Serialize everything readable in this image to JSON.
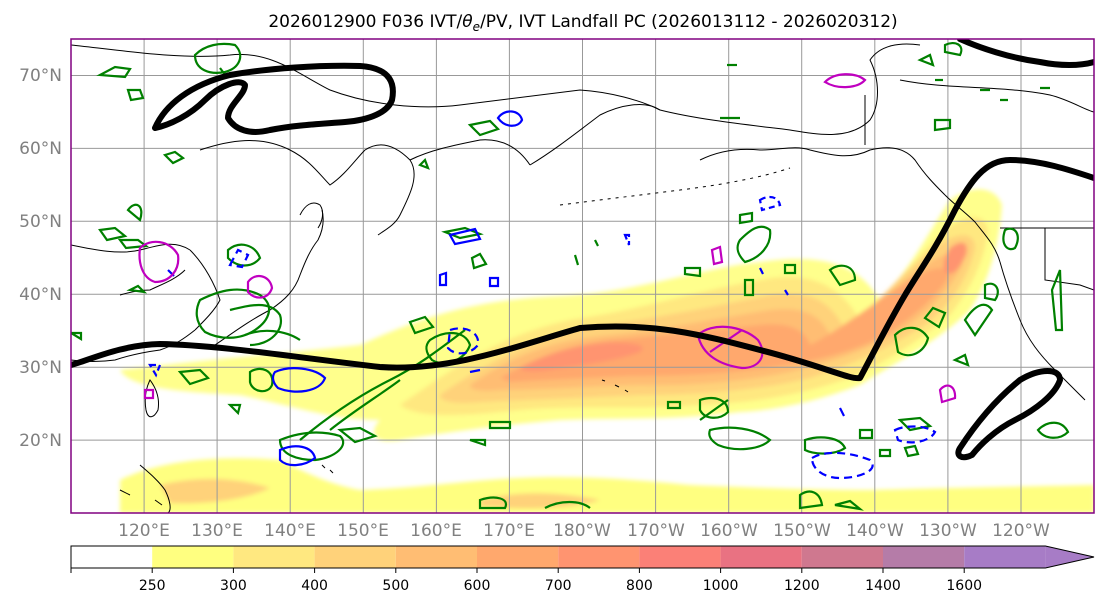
{
  "title": {
    "prefix": "2026012900 F036 IVT/",
    "theta": "θ",
    "sub_e": "e",
    "suffix": "/PV, IVT Landfall PC (2026013112 - 2026020312)"
  },
  "map": {
    "lat_labels": [
      "70°N",
      "60°N",
      "50°N",
      "40°N",
      "30°N",
      "20°N"
    ],
    "lon_labels": [
      "120°E",
      "130°E",
      "140°E",
      "150°E",
      "160°E",
      "170°E",
      "180°W",
      "170°W",
      "160°W",
      "150°W",
      "140°W",
      "130°W",
      "120°W"
    ],
    "lat_values": [
      70,
      60,
      50,
      40,
      30,
      20
    ],
    "lon_values": [
      120,
      130,
      140,
      150,
      160,
      170,
      180,
      190,
      200,
      210,
      220,
      230,
      240
    ],
    "lon_range": [
      109,
      249
    ],
    "lat_range": [
      10,
      75
    ],
    "grid_color": "#999999",
    "label_color": "#808080",
    "frame_color": "#800080"
  },
  "colorbar": {
    "labels": [
      "250",
      "300",
      "400",
      "500",
      "600",
      "700",
      "800",
      "1000",
      "1200",
      "1400",
      "1600"
    ],
    "colors": [
      "#ffffff",
      "#ffff80",
      "#ffe880",
      "#ffd27a",
      "#ffbd73",
      "#ffa86d",
      "#ff9470",
      "#fb8077",
      "#e97282",
      "#cf788f",
      "#b57ca8",
      "#a77cc6"
    ]
  },
  "legend_colors": {
    "pc_contour": "#000000",
    "pv_positive": "#008000",
    "theta_e_cold": "#0000ff",
    "theta_e_warm": "#c000c0"
  }
}
